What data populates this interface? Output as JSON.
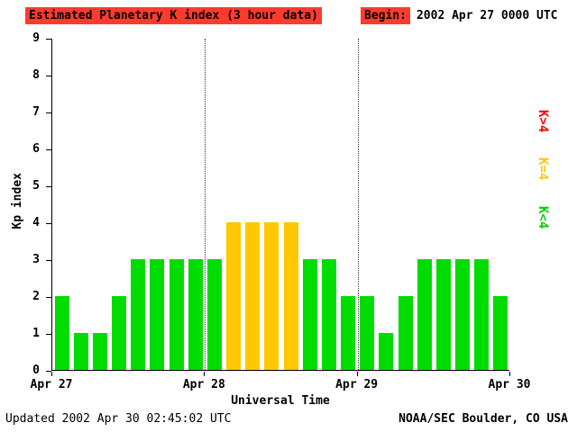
{
  "header": {
    "title": "Estimated Planetary K index (3 hour data)",
    "begin_label": "Begin:",
    "begin_value": "2002 Apr 27 0000 UTC",
    "title_bg_color": "#ff3b2e"
  },
  "footer": {
    "updated": "Updated 2002 Apr 30 02:45:02 UTC",
    "credit": "NOAA/SEC Boulder, CO USA"
  },
  "legend": {
    "items": [
      {
        "label": "K>4",
        "color": "#ff0000"
      },
      {
        "label": "K=4",
        "color": "#ffc800"
      },
      {
        "label": "K<4",
        "color": "#00d300"
      }
    ]
  },
  "chart_data": {
    "type": "bar",
    "title": "Estimated Planetary K index (3 hour data)",
    "xlabel": "Universal Time",
    "ylabel": "Kp index",
    "ylim": [
      0,
      9
    ],
    "y_ticks": [
      0,
      1,
      2,
      3,
      4,
      5,
      6,
      7,
      8,
      9
    ],
    "x_ticks": [
      "Apr 27",
      "Apr 28",
      "Apr 29",
      "Apr 30"
    ],
    "interval_hours": 3,
    "bars_per_day": 8,
    "values": [
      2,
      1,
      1,
      2,
      3,
      3,
      3,
      3,
      3,
      4,
      4,
      4,
      4,
      3,
      3,
      2,
      2,
      1,
      2,
      3,
      3,
      3,
      3,
      2
    ],
    "colors": {
      "below4": "#00dc00",
      "equal4": "#ffc800",
      "above4": "#ff0000"
    },
    "grid": "dotted vertical lines at day boundaries",
    "legend_position": "right"
  }
}
